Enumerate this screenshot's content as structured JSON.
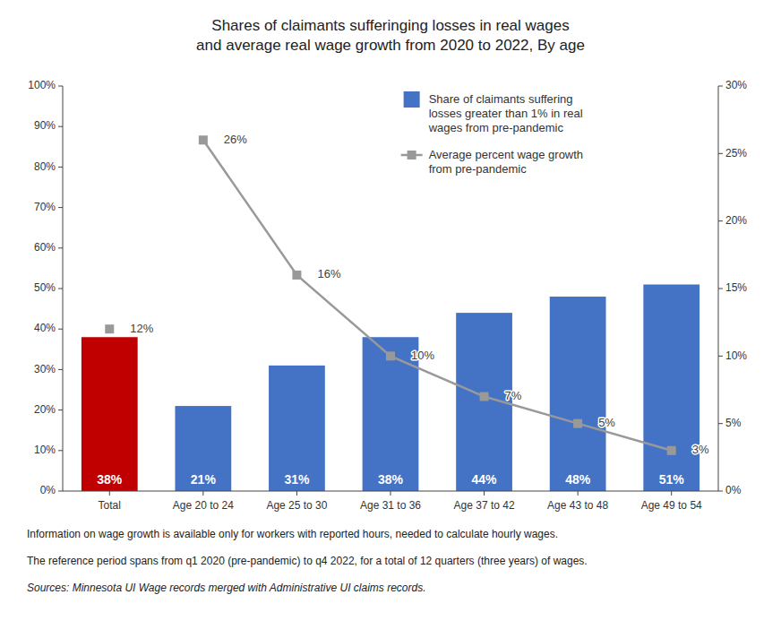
{
  "chart_data": {
    "type": "bar",
    "title": "Shares of claimants sufferinging losses in real wages\nand average real wage growth from 2020 to 2022, By age",
    "categories": [
      "Total",
      "Age 20 to 24",
      "Age 25 to 30",
      "Age 31 to 36",
      "Age 37 to 42",
      "Age 43 to 48",
      "Age 49 to 54"
    ],
    "series": [
      {
        "name": "Share of claimants suffering\nlosses greater than 1% in real\nwages from pre-pandemic",
        "type": "bar",
        "colors": [
          "#c00000",
          "#4472c4",
          "#4472c4",
          "#4472c4",
          "#4472c4",
          "#4472c4",
          "#4472c4"
        ],
        "values": [
          38,
          21,
          31,
          38,
          44,
          48,
          51
        ],
        "data_labels": true,
        "value_labels": [
          "38%",
          "21%",
          "31%",
          "38%",
          "44%",
          "48%",
          "51%"
        ]
      },
      {
        "name": "Average percent wage growth\nfrom pre-pandemic",
        "type": "line",
        "axis": "y2",
        "color": "#999999",
        "marker": "square",
        "values": [
          null,
          26,
          16,
          10,
          7,
          5,
          3
        ],
        "data_labels": true,
        "value_labels": [
          null,
          "26%",
          "16%",
          "10%",
          "7%",
          "5%",
          "3%"
        ]
      },
      {
        "type": "line",
        "axis": "y2",
        "color": "#999999",
        "marker": "square",
        "values": [
          12,
          null,
          null,
          null,
          null,
          null,
          null
        ],
        "data_labels": true,
        "value_labels": [
          "12%",
          null,
          null,
          null,
          null,
          null,
          null
        ]
      }
    ],
    "ylim": [
      0,
      100
    ],
    "yticks": [
      {
        "value": 0,
        "label": "0%"
      },
      {
        "value": 10,
        "label": "10%"
      },
      {
        "value": 20,
        "label": "20%"
      },
      {
        "value": 30,
        "label": "30%"
      },
      {
        "value": 40,
        "label": "40%"
      },
      {
        "value": 50,
        "label": "50%"
      },
      {
        "value": 60,
        "label": "60%"
      },
      {
        "value": 70,
        "label": "70%"
      },
      {
        "value": 80,
        "label": "80%"
      },
      {
        "value": 90,
        "label": "90%"
      },
      {
        "value": 100,
        "label": "100%"
      }
    ],
    "y2lim": [
      0,
      30
    ],
    "y2ticks": [
      {
        "value": 0,
        "label": "0%"
      },
      {
        "value": 5,
        "label": "5%"
      },
      {
        "value": 10,
        "label": "10%"
      },
      {
        "value": 15,
        "label": "15%"
      },
      {
        "value": 20,
        "label": "20%"
      },
      {
        "value": 25,
        "label": "25%"
      },
      {
        "value": 30,
        "label": "30%"
      }
    ],
    "grid": false,
    "legend": "upper right",
    "annotations": [
      "Information on wage growth is available only for workers with reported hours, needed to calculate hourly wages.",
      "The reference period spans from q1 2020 (pre-pandemic) to q4 2022, for a total of 12 quarters (three years) of wages.",
      "Sources: Minnesota UI Wage records merged with Administrative UI claims records."
    ]
  }
}
